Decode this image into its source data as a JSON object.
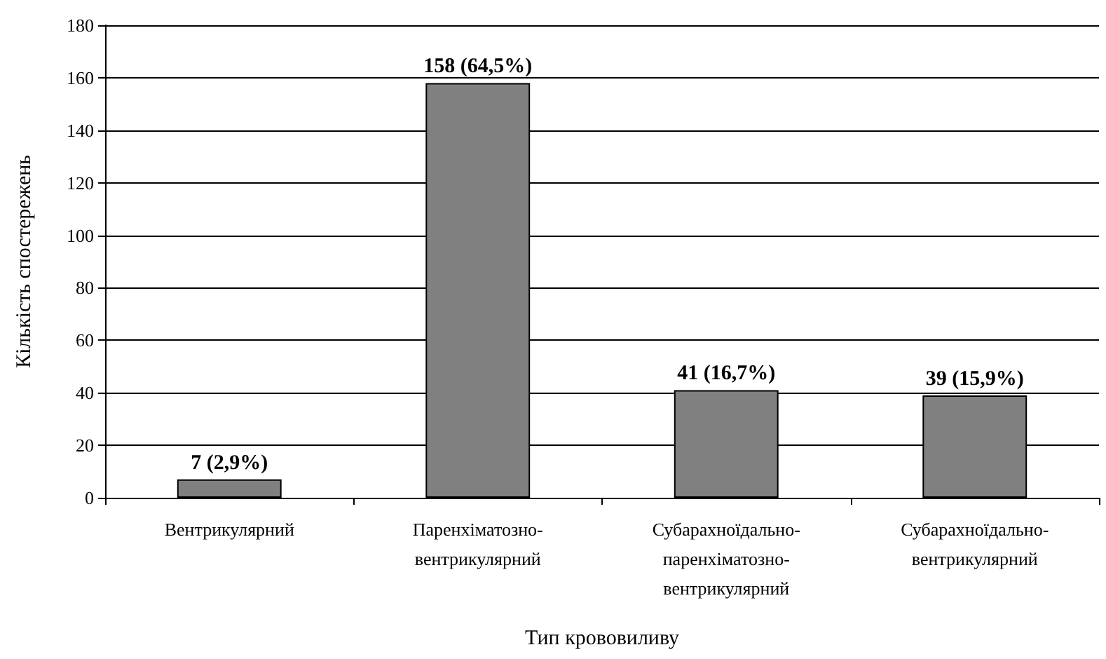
{
  "chart_data": {
    "type": "bar",
    "xlabel": "Тип крововиливу",
    "ylabel": "Кількість спостережень",
    "categories": [
      "Вентрикулярний",
      "Паренхіматозно-\nвентрикулярний",
      "Субарахноїдально-\nпаренхіматозно-\nвентрикулярний",
      "Субарахноїдально-\nвентрикулярний"
    ],
    "values": [
      7,
      158,
      41,
      39
    ],
    "color": "#808080",
    "value_labels": [
      "7 (2,9%)",
      "158 (64,5%)",
      "41 (16,7%)",
      "39 (15,9%)"
    ],
    "ylim": [
      0,
      180
    ],
    "yticks": [
      0,
      20,
      40,
      60,
      80,
      100,
      120,
      140,
      160,
      180
    ],
    "grid": "y"
  }
}
